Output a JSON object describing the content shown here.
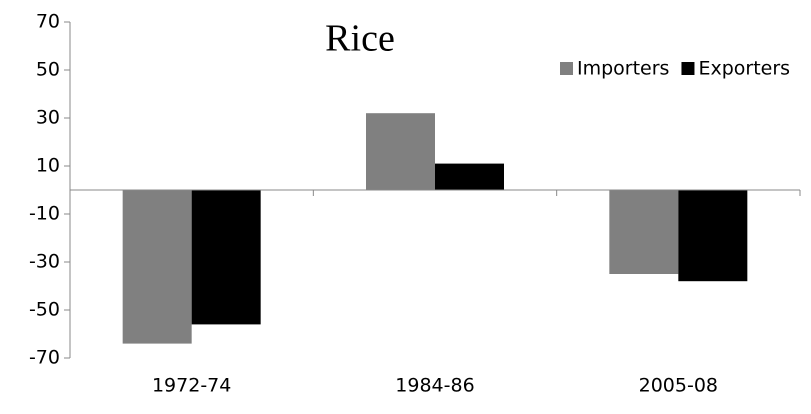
{
  "chart_data": {
    "type": "bar",
    "title": "Rice",
    "categories": [
      "1972-74",
      "1984-86",
      "2005-08"
    ],
    "series": [
      {
        "name": "Importers",
        "color": "#808080",
        "values": [
          -64,
          32,
          -35
        ]
      },
      {
        "name": "Exporters",
        "color": "#000000",
        "values": [
          -56,
          11,
          -38
        ]
      }
    ],
    "ylim": [
      -70,
      70
    ],
    "yticks": [
      -70,
      -50,
      -30,
      -10,
      10,
      30,
      50,
      70
    ],
    "legend": "top-right",
    "grid": false
  }
}
